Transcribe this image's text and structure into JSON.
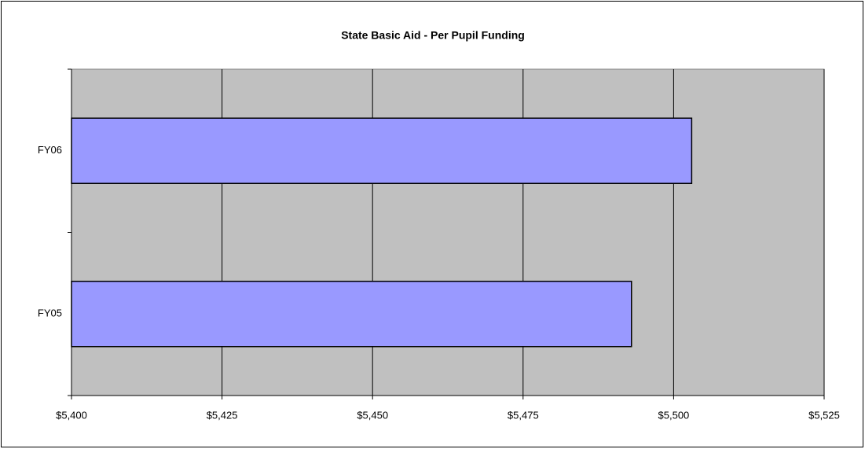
{
  "chart_data": {
    "type": "bar",
    "orientation": "horizontal",
    "title": "State Basic Aid - Per Pupil Funding",
    "categories": [
      "FY05",
      "FY06"
    ],
    "values": [
      5493,
      5503
    ],
    "color": "#9999ff",
    "xlim": [
      5400,
      5525
    ],
    "xticks": [
      {
        "value": 5400,
        "label": "$5,400"
      },
      {
        "value": 5425,
        "label": "$5,425"
      },
      {
        "value": 5450,
        "label": "$5,450"
      },
      {
        "value": 5475,
        "label": "$5,475"
      },
      {
        "value": 5500,
        "label": "$5,500"
      },
      {
        "value": 5525,
        "label": "$5,525"
      }
    ],
    "grid": true
  }
}
